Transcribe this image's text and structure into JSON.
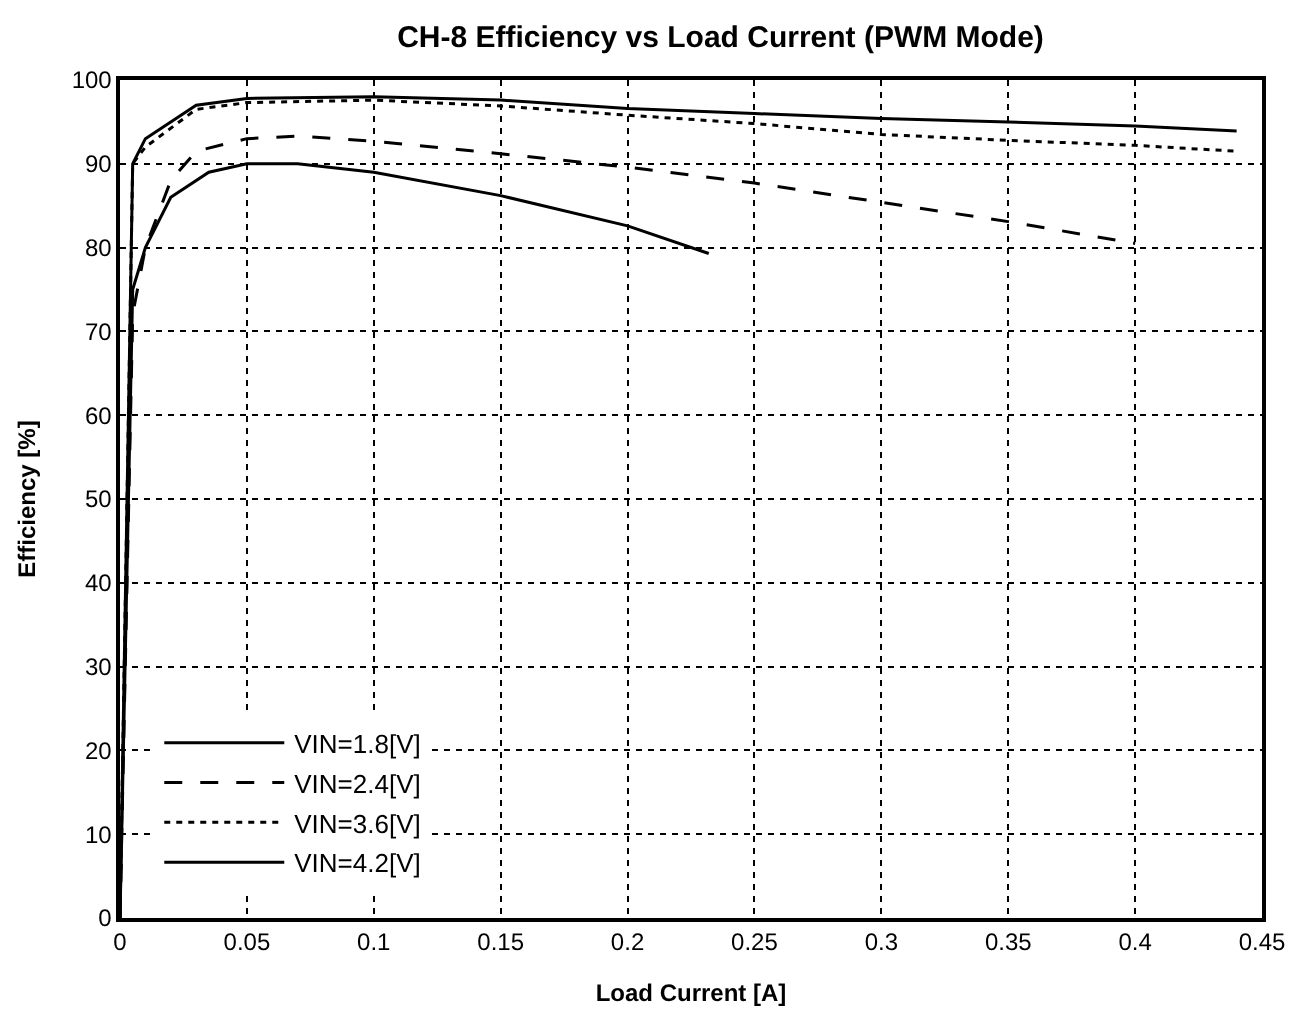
{
  "chart_data": {
    "type": "line",
    "title": "CH-8 Efficiency vs Load Current (PWM Mode)",
    "xlabel": "Load Current [A]",
    "ylabel": "Efficiency [%]",
    "xlim": [
      0,
      0.45
    ],
    "xticks": [
      0,
      0.05,
      0.1,
      0.15,
      0.2,
      0.25,
      0.3,
      0.35,
      0.4,
      0.45
    ],
    "ylim": [
      0,
      100
    ],
    "yticks": [
      0,
      10,
      20,
      30,
      40,
      50,
      60,
      70,
      80,
      90,
      100
    ],
    "grid": true,
    "legend": "bottom left",
    "marker": "none",
    "series": [
      {
        "name": "VIN=1.8[V]",
        "color": "#000000",
        "line_style": "solid",
        "x": [
          0,
          0.005,
          0.01,
          0.02,
          0.035,
          0.05,
          0.07,
          0.1,
          0.15,
          0.2,
          0.232
        ],
        "values": [
          0,
          75,
          80,
          86,
          89,
          90,
          90,
          89,
          86.2,
          82.6,
          79.3
        ]
      },
      {
        "name": "VIN=2.4[V]",
        "color": "#000000",
        "line_style": "dashed",
        "x": [
          0,
          0.005,
          0.01,
          0.02,
          0.03,
          0.05,
          0.07,
          0.1,
          0.15,
          0.2,
          0.25,
          0.3,
          0.35,
          0.4
        ],
        "values": [
          0,
          72,
          80,
          88,
          91.5,
          93,
          93.3,
          92.7,
          91.2,
          89.6,
          87.7,
          85.4,
          83.1,
          80.5
        ]
      },
      {
        "name": "VIN=3.6[V]",
        "color": "#000000",
        "line_style": "dotted",
        "x": [
          0,
          0.005,
          0.01,
          0.03,
          0.05,
          0.1,
          0.15,
          0.2,
          0.25,
          0.3,
          0.35,
          0.4,
          0.44
        ],
        "values": [
          0,
          90,
          92,
          96.5,
          97.3,
          97.6,
          96.9,
          95.8,
          94.8,
          93.5,
          92.8,
          92.2,
          91.5
        ]
      },
      {
        "name": "VIN=4.2[V]",
        "color": "#000000",
        "line_style": "solid",
        "x": [
          0,
          0.005,
          0.01,
          0.03,
          0.05,
          0.1,
          0.15,
          0.2,
          0.25,
          0.3,
          0.35,
          0.4,
          0.44
        ],
        "values": [
          0,
          90,
          93,
          97,
          97.8,
          98,
          97.6,
          96.6,
          96,
          95.4,
          95,
          94.5,
          93.9
        ]
      }
    ]
  }
}
